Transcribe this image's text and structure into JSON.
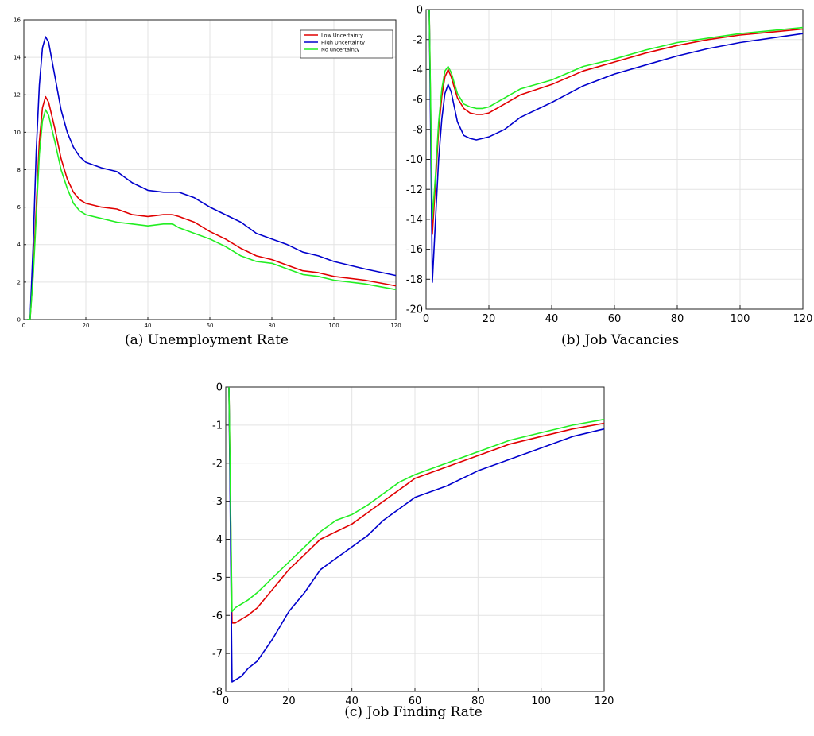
{
  "chart_data": [
    {
      "type": "line",
      "caption": "(a) Unemployment Rate",
      "xlim": [
        0,
        120
      ],
      "ylim": [
        0,
        16
      ],
      "xticks": [
        0,
        20,
        40,
        60,
        80,
        100,
        120
      ],
      "yticks": [
        0,
        2,
        4,
        6,
        8,
        10,
        12,
        14,
        16
      ],
      "grid": true,
      "legend": "top-right",
      "series": [
        {
          "name": "Low Uncertainty",
          "color": "#e00000",
          "x": [
            1,
            2,
            3,
            4,
            5,
            6,
            7,
            8,
            10,
            12,
            14,
            16,
            18,
            20,
            25,
            30,
            35,
            40,
            45,
            48,
            50,
            55,
            60,
            65,
            70,
            75,
            80,
            85,
            90,
            95,
            100,
            110,
            120
          ],
          "y": [
            0,
            0,
            2.5,
            6.0,
            9.5,
            11.3,
            11.9,
            11.6,
            10.2,
            8.6,
            7.5,
            6.8,
            6.4,
            6.2,
            6.0,
            5.9,
            5.6,
            5.5,
            5.6,
            5.6,
            5.5,
            5.2,
            4.7,
            4.3,
            3.8,
            3.4,
            3.2,
            2.9,
            2.6,
            2.5,
            2.3,
            2.1,
            1.8
          ]
        },
        {
          "name": "High Uncertainty",
          "color": "#0000cc",
          "x": [
            1,
            2,
            3,
            4,
            5,
            6,
            7,
            8,
            10,
            12,
            14,
            16,
            18,
            20,
            25,
            30,
            35,
            40,
            45,
            50,
            55,
            60,
            65,
            70,
            75,
            80,
            85,
            90,
            95,
            100,
            110,
            120
          ],
          "y": [
            0,
            0,
            4.0,
            9.0,
            12.5,
            14.5,
            15.1,
            14.8,
            13.0,
            11.2,
            10.0,
            9.2,
            8.7,
            8.4,
            8.1,
            7.9,
            7.3,
            6.9,
            6.8,
            6.8,
            6.5,
            6.0,
            5.6,
            5.2,
            4.6,
            4.3,
            4.0,
            3.6,
            3.4,
            3.1,
            2.7,
            2.35
          ]
        },
        {
          "name": "No uncertainty",
          "color": "#22ee22",
          "x": [
            1,
            2,
            3,
            4,
            5,
            6,
            7,
            8,
            10,
            12,
            14,
            16,
            18,
            20,
            25,
            30,
            35,
            40,
            45,
            48,
            50,
            55,
            60,
            65,
            70,
            75,
            80,
            85,
            90,
            95,
            100,
            110,
            120
          ],
          "y": [
            0,
            0,
            2.3,
            5.5,
            8.8,
            10.6,
            11.2,
            10.9,
            9.5,
            8.0,
            7.0,
            6.2,
            5.8,
            5.6,
            5.4,
            5.2,
            5.1,
            5.0,
            5.1,
            5.1,
            4.9,
            4.6,
            4.3,
            3.9,
            3.4,
            3.1,
            3.0,
            2.7,
            2.4,
            2.3,
            2.1,
            1.9,
            1.6
          ]
        }
      ]
    },
    {
      "type": "line",
      "caption": "(b) Job Vacancies",
      "xlim": [
        0,
        120
      ],
      "ylim": [
        -20,
        0
      ],
      "xticks": [
        0,
        20,
        40,
        60,
        80,
        100,
        120
      ],
      "yticks": [
        0,
        -2,
        -4,
        -6,
        -8,
        -10,
        -12,
        -14,
        -16,
        -18,
        -20
      ],
      "grid": true,
      "series": [
        {
          "name": "",
          "color": "#e00000",
          "x": [
            1,
            2,
            3,
            4,
            5,
            6,
            7,
            8,
            9,
            10,
            12,
            14,
            16,
            18,
            20,
            25,
            30,
            40,
            50,
            60,
            70,
            80,
            90,
            100,
            110,
            120
          ],
          "y": [
            0,
            -15.0,
            -11.5,
            -8.0,
            -5.8,
            -4.5,
            -4.0,
            -4.5,
            -5.2,
            -5.9,
            -6.6,
            -6.9,
            -7.0,
            -7.0,
            -6.9,
            -6.3,
            -5.7,
            -5.0,
            -4.1,
            -3.5,
            -2.9,
            -2.4,
            -2.0,
            -1.7,
            -1.5,
            -1.3
          ]
        },
        {
          "name": "",
          "color": "#0000cc",
          "x": [
            1,
            2,
            3,
            4,
            5,
            6,
            7,
            8,
            9,
            10,
            12,
            14,
            16,
            18,
            20,
            25,
            30,
            40,
            50,
            60,
            70,
            80,
            90,
            100,
            110,
            120
          ],
          "y": [
            0,
            -18.2,
            -14.0,
            -10.0,
            -7.3,
            -5.6,
            -5.0,
            -5.5,
            -6.5,
            -7.5,
            -8.4,
            -8.6,
            -8.7,
            -8.6,
            -8.5,
            -8.0,
            -7.2,
            -6.2,
            -5.1,
            -4.3,
            -3.7,
            -3.1,
            -2.6,
            -2.2,
            -1.9,
            -1.6
          ]
        },
        {
          "name": "",
          "color": "#22ee22",
          "x": [
            1,
            2,
            3,
            4,
            5,
            6,
            7,
            8,
            9,
            10,
            12,
            14,
            16,
            18,
            20,
            25,
            30,
            40,
            50,
            60,
            70,
            80,
            90,
            100,
            110,
            120
          ],
          "y": [
            0,
            -14.0,
            -11.0,
            -7.5,
            -5.3,
            -4.1,
            -3.8,
            -4.2,
            -4.9,
            -5.6,
            -6.3,
            -6.5,
            -6.6,
            -6.6,
            -6.5,
            -5.9,
            -5.3,
            -4.7,
            -3.8,
            -3.3,
            -2.7,
            -2.2,
            -1.9,
            -1.6,
            -1.4,
            -1.2
          ]
        }
      ]
    },
    {
      "type": "line",
      "caption": "(c) Job Finding Rate",
      "xlim": [
        0,
        120
      ],
      "ylim": [
        -8,
        0
      ],
      "xticks": [
        0,
        20,
        40,
        60,
        80,
        100,
        120
      ],
      "yticks": [
        0,
        -1,
        -2,
        -3,
        -4,
        -5,
        -6,
        -7,
        -8
      ],
      "grid": true,
      "series": [
        {
          "name": "",
          "color": "#e00000",
          "x": [
            1,
            2,
            3,
            5,
            7,
            10,
            15,
            20,
            25,
            30,
            35,
            40,
            45,
            50,
            55,
            60,
            70,
            80,
            90,
            100,
            110,
            120
          ],
          "y": [
            0,
            -6.2,
            -6.2,
            -6.1,
            -6.0,
            -5.8,
            -5.3,
            -4.8,
            -4.4,
            -4.0,
            -3.8,
            -3.6,
            -3.3,
            -3.0,
            -2.7,
            -2.4,
            -2.1,
            -1.8,
            -1.5,
            -1.3,
            -1.1,
            -0.95
          ]
        },
        {
          "name": "",
          "color": "#0000cc",
          "x": [
            1,
            2,
            3,
            5,
            7,
            10,
            15,
            20,
            25,
            30,
            35,
            40,
            45,
            50,
            55,
            60,
            70,
            80,
            90,
            100,
            110,
            120
          ],
          "y": [
            0,
            -7.75,
            -7.7,
            -7.6,
            -7.4,
            -7.2,
            -6.6,
            -5.9,
            -5.4,
            -4.8,
            -4.5,
            -4.2,
            -3.9,
            -3.5,
            -3.2,
            -2.9,
            -2.6,
            -2.2,
            -1.9,
            -1.6,
            -1.3,
            -1.1
          ]
        },
        {
          "name": "",
          "color": "#22ee22",
          "x": [
            1,
            2,
            3,
            5,
            7,
            10,
            15,
            20,
            25,
            30,
            35,
            40,
            45,
            50,
            55,
            60,
            70,
            80,
            90,
            100,
            110,
            120
          ],
          "y": [
            0,
            -5.9,
            -5.8,
            -5.7,
            -5.6,
            -5.4,
            -5.0,
            -4.6,
            -4.2,
            -3.8,
            -3.5,
            -3.35,
            -3.1,
            -2.8,
            -2.5,
            -2.3,
            -2.0,
            -1.7,
            -1.4,
            -1.2,
            -1.0,
            -0.85
          ]
        }
      ]
    }
  ]
}
